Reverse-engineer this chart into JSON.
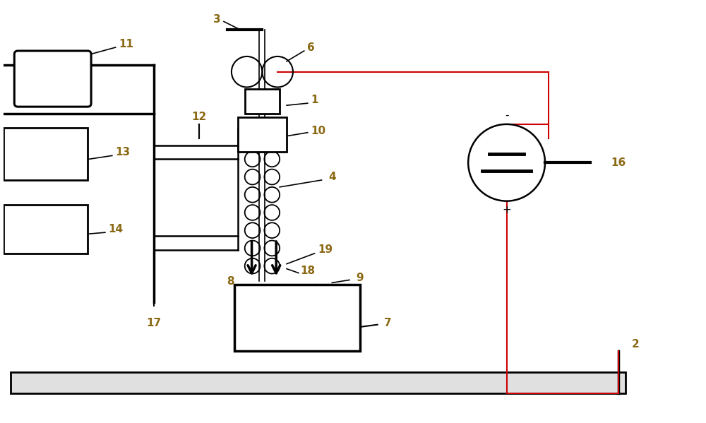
{
  "bg_color": "#ffffff",
  "line_color": "#000000",
  "red_line_color": "#cc0000",
  "label_color": "#8B6914",
  "figsize": [
    10.0,
    5.99
  ],
  "dpi": 100
}
